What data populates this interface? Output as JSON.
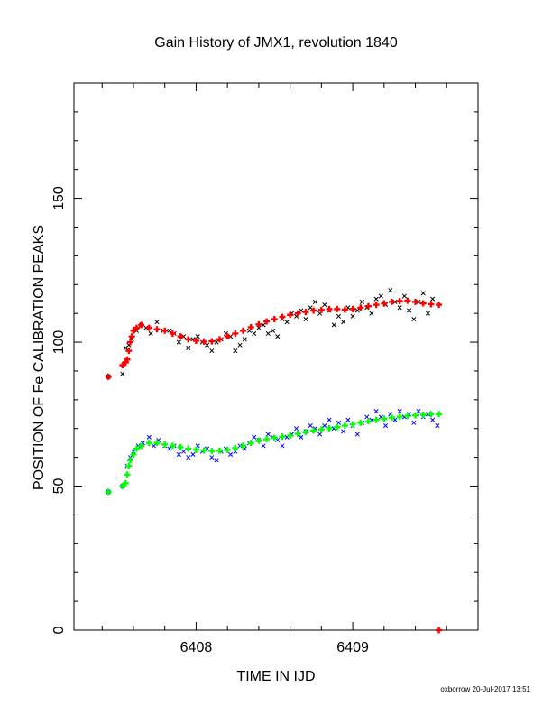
{
  "chart_data": {
    "type": "scatter",
    "title": "Gain History of JMX1, revolution 1840",
    "xlabel": "TIME IN IJD",
    "ylabel": "POSITION OF Fe CALIBRATION PEAKS",
    "xlim": [
      6407.22,
      6409.8
    ],
    "ylim": [
      0,
      190
    ],
    "x_ticks": [
      {
        "value": 6408,
        "label": "6408"
      },
      {
        "value": 6409,
        "label": "6409"
      }
    ],
    "y_ticks": [
      {
        "value": 0,
        "label": "0"
      },
      {
        "value": 50,
        "label": "50"
      },
      {
        "value": 100,
        "label": "100"
      },
      {
        "value": 150,
        "label": "150"
      }
    ],
    "grid": false,
    "footer": "oxborrow 20-Jul-2017 13:51",
    "series": [
      {
        "marker": "x",
        "color": "#000000",
        "points": [
          [
            6407.44,
            88
          ],
          [
            6407.53,
            89
          ],
          [
            6407.55,
            98
          ],
          [
            6407.57,
            99
          ],
          [
            6407.59,
            101
          ],
          [
            6407.62,
            104
          ],
          [
            6407.65,
            106
          ],
          [
            6407.68,
            105
          ],
          [
            6407.71,
            103
          ],
          [
            6407.75,
            107
          ],
          [
            6407.79,
            104
          ],
          [
            6407.83,
            104
          ],
          [
            6407.86,
            103
          ],
          [
            6407.89,
            100
          ],
          [
            6407.92,
            102
          ],
          [
            6407.95,
            98
          ],
          [
            6407.98,
            101
          ],
          [
            6408.01,
            102
          ],
          [
            6408.04,
            100
          ],
          [
            6408.07,
            99
          ],
          [
            6408.1,
            97
          ],
          [
            6408.13,
            100
          ],
          [
            6408.16,
            101
          ],
          [
            6408.19,
            103
          ],
          [
            6408.22,
            102
          ],
          [
            6408.25,
            97
          ],
          [
            6408.28,
            99
          ],
          [
            6408.31,
            101
          ],
          [
            6408.34,
            104
          ],
          [
            6408.37,
            103
          ],
          [
            6408.4,
            105
          ],
          [
            6408.43,
            106
          ],
          [
            6408.46,
            103
          ],
          [
            6408.49,
            104
          ],
          [
            6408.52,
            102
          ],
          [
            6408.55,
            108
          ],
          [
            6408.58,
            107
          ],
          [
            6408.61,
            110
          ],
          [
            6408.64,
            109
          ],
          [
            6408.67,
            111
          ],
          [
            6408.7,
            108
          ],
          [
            6408.73,
            112
          ],
          [
            6408.76,
            114
          ],
          [
            6408.79,
            110
          ],
          [
            6408.82,
            113
          ],
          [
            6408.85,
            111
          ],
          [
            6408.88,
            106
          ],
          [
            6408.91,
            109
          ],
          [
            6408.94,
            107
          ],
          [
            6408.97,
            112
          ],
          [
            6409.0,
            109
          ],
          [
            6409.03,
            111
          ],
          [
            6409.06,
            114
          ],
          [
            6409.09,
            112
          ],
          [
            6409.12,
            110
          ],
          [
            6409.15,
            115
          ],
          [
            6409.18,
            116
          ],
          [
            6409.21,
            113
          ],
          [
            6409.24,
            118
          ],
          [
            6409.27,
            114
          ],
          [
            6409.3,
            112
          ],
          [
            6409.33,
            116
          ],
          [
            6409.36,
            111
          ],
          [
            6409.39,
            108
          ],
          [
            6409.42,
            114
          ],
          [
            6409.45,
            117
          ],
          [
            6409.48,
            110
          ],
          [
            6409.51,
            115
          ]
        ]
      },
      {
        "marker": "plus",
        "color": "#ff0000",
        "points": [
          [
            6407.44,
            88
          ],
          [
            6407.53,
            92
          ],
          [
            6407.55,
            93
          ],
          [
            6407.56,
            94
          ],
          [
            6407.57,
            97
          ],
          [
            6407.58,
            100
          ],
          [
            6407.59,
            102
          ],
          [
            6407.6,
            104
          ],
          [
            6407.62,
            105
          ],
          [
            6407.65,
            106
          ],
          [
            6407.7,
            105
          ],
          [
            6407.75,
            104.5
          ],
          [
            6407.8,
            104
          ],
          [
            6407.85,
            103
          ],
          [
            6407.9,
            102
          ],
          [
            6407.95,
            101
          ],
          [
            6408.0,
            100.5
          ],
          [
            6408.05,
            100.2
          ],
          [
            6408.1,
            100.3
          ],
          [
            6408.15,
            101
          ],
          [
            6408.2,
            102
          ],
          [
            6408.25,
            103
          ],
          [
            6408.3,
            104
          ],
          [
            6408.35,
            105.2
          ],
          [
            6408.4,
            106.2
          ],
          [
            6408.45,
            107.2
          ],
          [
            6408.5,
            108
          ],
          [
            6408.55,
            108.8
          ],
          [
            6408.6,
            109.5
          ],
          [
            6408.65,
            110
          ],
          [
            6408.7,
            110.5
          ],
          [
            6408.75,
            111
          ],
          [
            6408.8,
            111.2
          ],
          [
            6408.85,
            111.5
          ],
          [
            6408.9,
            111.5
          ],
          [
            6408.95,
            111.3
          ],
          [
            6409.0,
            111.5
          ],
          [
            6409.05,
            112
          ],
          [
            6409.1,
            112.5
          ],
          [
            6409.15,
            113
          ],
          [
            6409.2,
            113.5
          ],
          [
            6409.25,
            114
          ],
          [
            6409.3,
            114.3
          ],
          [
            6409.35,
            114.4
          ],
          [
            6409.4,
            114
          ],
          [
            6409.45,
            113.5
          ],
          [
            6409.5,
            113.2
          ],
          [
            6409.55,
            113
          ]
        ]
      },
      {
        "marker": "x",
        "color": "#0000ff",
        "points": [
          [
            6407.44,
            48
          ],
          [
            6407.53,
            50
          ],
          [
            6407.56,
            57
          ],
          [
            6407.58,
            60
          ],
          [
            6407.6,
            62
          ],
          [
            6407.63,
            64
          ],
          [
            6407.66,
            65
          ],
          [
            6407.7,
            67
          ],
          [
            6407.73,
            64
          ],
          [
            6407.76,
            66
          ],
          [
            6407.8,
            64
          ],
          [
            6407.83,
            63
          ],
          [
            6407.86,
            64
          ],
          [
            6407.89,
            61
          ],
          [
            6407.92,
            62
          ],
          [
            6407.95,
            60
          ],
          [
            6407.98,
            61
          ],
          [
            6408.01,
            64
          ],
          [
            6408.04,
            62
          ],
          [
            6408.07,
            63
          ],
          [
            6408.1,
            60
          ],
          [
            6408.13,
            59
          ],
          [
            6408.16,
            62
          ],
          [
            6408.19,
            63
          ],
          [
            6408.22,
            61
          ],
          [
            6408.25,
            62
          ],
          [
            6408.28,
            64
          ],
          [
            6408.31,
            63
          ],
          [
            6408.34,
            65
          ],
          [
            6408.37,
            67
          ],
          [
            6408.4,
            66
          ],
          [
            6408.43,
            64
          ],
          [
            6408.46,
            68
          ],
          [
            6408.49,
            67
          ],
          [
            6408.52,
            66
          ],
          [
            6408.55,
            64
          ],
          [
            6408.58,
            67
          ],
          [
            6408.61,
            68
          ],
          [
            6408.64,
            70
          ],
          [
            6408.67,
            67
          ],
          [
            6408.7,
            69
          ],
          [
            6408.73,
            71
          ],
          [
            6408.76,
            70
          ],
          [
            6408.79,
            68
          ],
          [
            6408.82,
            71
          ],
          [
            6408.85,
            73
          ],
          [
            6408.88,
            70
          ],
          [
            6408.91,
            72
          ],
          [
            6408.94,
            69
          ],
          [
            6408.97,
            73
          ],
          [
            6409.0,
            71
          ],
          [
            6409.03,
            68
          ],
          [
            6409.06,
            72
          ],
          [
            6409.09,
            74
          ],
          [
            6409.12,
            73
          ],
          [
            6409.15,
            76
          ],
          [
            6409.18,
            74
          ],
          [
            6409.21,
            71
          ],
          [
            6409.24,
            75
          ],
          [
            6409.27,
            73
          ],
          [
            6409.3,
            76
          ],
          [
            6409.33,
            74
          ],
          [
            6409.36,
            75
          ],
          [
            6409.39,
            72
          ],
          [
            6409.42,
            76
          ],
          [
            6409.45,
            74
          ],
          [
            6409.48,
            75
          ],
          [
            6409.51,
            73
          ],
          [
            6409.54,
            71
          ]
        ]
      },
      {
        "marker": "plus",
        "color": "#00ff00",
        "points": [
          [
            6407.44,
            48
          ],
          [
            6407.53,
            50
          ],
          [
            6407.55,
            51
          ],
          [
            6407.56,
            54
          ],
          [
            6407.57,
            57
          ],
          [
            6407.58,
            59
          ],
          [
            6407.6,
            61
          ],
          [
            6407.62,
            63
          ],
          [
            6407.65,
            64
          ],
          [
            6407.7,
            65
          ],
          [
            6407.75,
            65
          ],
          [
            6407.8,
            64.5
          ],
          [
            6407.85,
            64
          ],
          [
            6407.9,
            63.5
          ],
          [
            6407.95,
            63
          ],
          [
            6408.0,
            62.6
          ],
          [
            6408.05,
            62.4
          ],
          [
            6408.1,
            62.2
          ],
          [
            6408.15,
            62.3
          ],
          [
            6408.2,
            62.6
          ],
          [
            6408.25,
            63.2
          ],
          [
            6408.3,
            64
          ],
          [
            6408.35,
            65
          ],
          [
            6408.4,
            65.8
          ],
          [
            6408.45,
            66.3
          ],
          [
            6408.5,
            66.8
          ],
          [
            6408.55,
            67.2
          ],
          [
            6408.6,
            67.6
          ],
          [
            6408.65,
            68.2
          ],
          [
            6408.7,
            68.8
          ],
          [
            6408.75,
            69.3
          ],
          [
            6408.8,
            69.7
          ],
          [
            6408.85,
            70.1
          ],
          [
            6408.9,
            70.5
          ],
          [
            6408.95,
            71
          ],
          [
            6409.0,
            71.5
          ],
          [
            6409.05,
            72
          ],
          [
            6409.1,
            72.5
          ],
          [
            6409.15,
            73
          ],
          [
            6409.2,
            73.4
          ],
          [
            6409.25,
            73.8
          ],
          [
            6409.3,
            74.1
          ],
          [
            6409.35,
            74.4
          ],
          [
            6409.4,
            74.6
          ],
          [
            6409.45,
            74.8
          ],
          [
            6409.5,
            75
          ],
          [
            6409.55,
            75
          ]
        ]
      }
    ],
    "extra_points": [
      {
        "x": 6409.55,
        "y": 0,
        "marker": "plus",
        "color": "#ff0000"
      }
    ]
  }
}
